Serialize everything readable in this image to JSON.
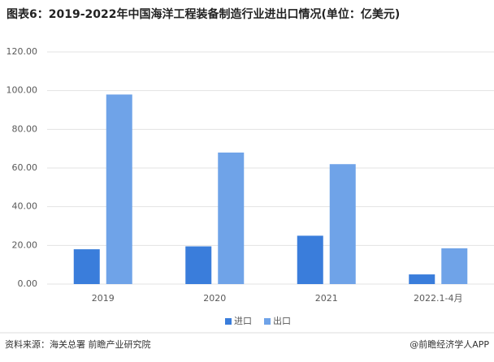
{
  "chart_data": {
    "type": "bar",
    "title": "图表6：2019-2022年中国海洋工程装备制造行业进出口情况(单位：亿美元)",
    "categories": [
      "2019",
      "2020",
      "2021",
      "2022.1-4月"
    ],
    "series": [
      {
        "name": "进口",
        "color": "#3a7ddb",
        "values": [
          18,
          19.5,
          25,
          5
        ]
      },
      {
        "name": "出口",
        "color": "#6fa3e8",
        "values": [
          98,
          68,
          62,
          18.5
        ]
      }
    ],
    "ylim": [
      0,
      120
    ],
    "yticks": [
      {
        "value": 0,
        "label": "0.00"
      },
      {
        "value": 20,
        "label": "20.00"
      },
      {
        "value": 40,
        "label": "40.00"
      },
      {
        "value": 60,
        "label": "60.00"
      },
      {
        "value": 80,
        "label": "80.00"
      },
      {
        "value": 100,
        "label": "100.00"
      },
      {
        "value": 120,
        "label": "120.00"
      }
    ],
    "grid": true,
    "legend": "bottom"
  },
  "source": "资料来源：海关总署 前瞻产业研究院",
  "credit": "@前瞻经济学人APP"
}
